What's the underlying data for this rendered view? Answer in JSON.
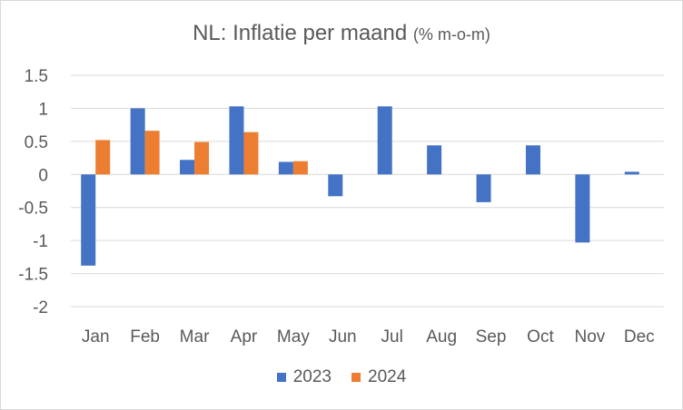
{
  "chart_data": {
    "type": "bar",
    "title": "NL: Inflatie per maand",
    "subtitle": "(% m-o-m)",
    "xlabel": "",
    "ylabel": "",
    "categories": [
      "Jan",
      "Feb",
      "Mar",
      "Apr",
      "May",
      "Jun",
      "Jul",
      "Aug",
      "Sep",
      "Oct",
      "Nov",
      "Dec"
    ],
    "series": [
      {
        "name": "2023",
        "color": "#4472c4",
        "values": [
          -1.38,
          1.0,
          0.22,
          1.03,
          0.19,
          -0.33,
          1.03,
          0.44,
          -0.42,
          0.44,
          -1.03,
          0.04
        ]
      },
      {
        "name": "2024",
        "color": "#ed7d31",
        "values": [
          0.52,
          0.66,
          0.49,
          0.64,
          0.2,
          null,
          null,
          null,
          null,
          null,
          null,
          null
        ]
      }
    ],
    "yticks": [
      "1.5",
      "1",
      "0.5",
      "0",
      "-0.5",
      "-1",
      "-1.5",
      "-2"
    ],
    "ylim": [
      -2,
      1.5
    ],
    "grid": true,
    "legend_position": "bottom"
  }
}
